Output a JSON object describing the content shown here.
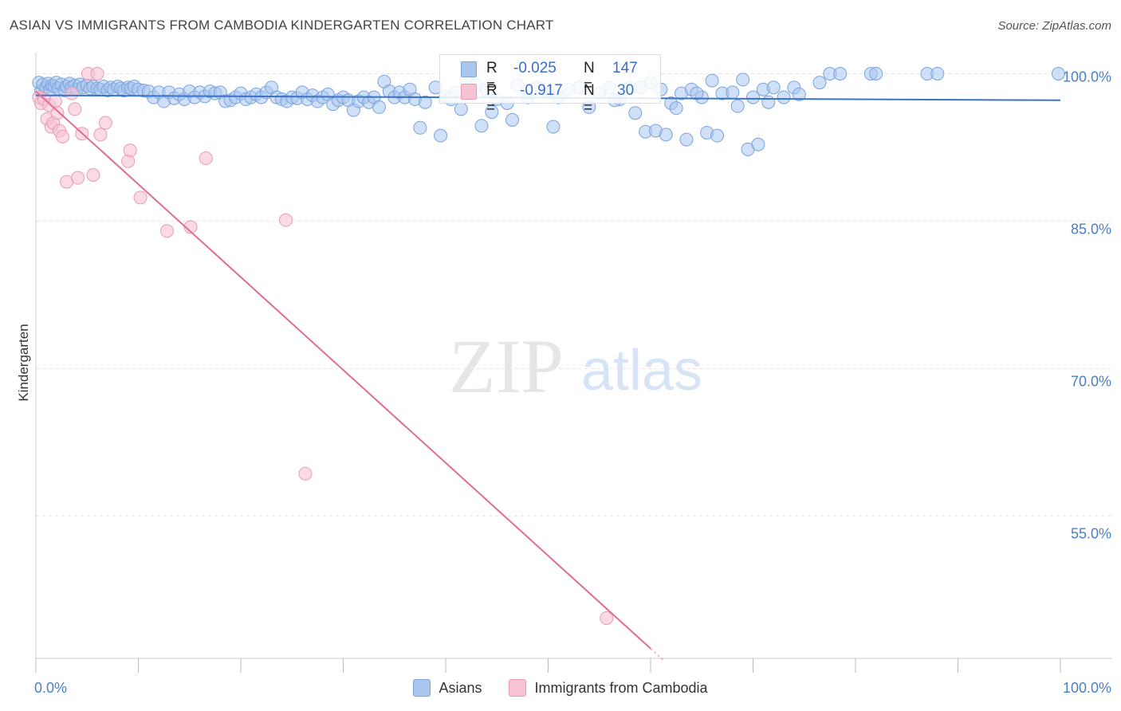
{
  "title": "ASIAN VS IMMIGRANTS FROM CAMBODIA KINDERGARTEN CORRELATION CHART",
  "source": "Source: ZipAtlas.com",
  "watermark": {
    "zip": "ZIP",
    "atlas": "atlas"
  },
  "colors": {
    "blue_fill": "#a9c6ee",
    "blue_stroke": "#7aa3dc",
    "blue_line": "#3a74c8",
    "pink_fill": "#f7c3d3",
    "pink_stroke": "#ea9ab4",
    "pink_line": "#e26a96",
    "tick_text": "#4a7ec7",
    "grid": "#e3e3e3"
  },
  "stats": {
    "series1": {
      "r_label": "R =",
      "r_value": "-0.025",
      "n_label": "N =",
      "n_value": "147"
    },
    "series2": {
      "r_label": "R =",
      "r_value": "-0.917",
      "n_label": "N =",
      "n_value": "30"
    }
  },
  "chart_data": {
    "type": "scatter",
    "title": "ASIAN VS IMMIGRANTS FROM CAMBODIA KINDERGARTEN CORRELATION CHART",
    "xlabel": "",
    "ylabel": "Kindergarten",
    "xlim": [
      0,
      100
    ],
    "ylim": [
      40.5,
      101.5
    ],
    "x_tick_labels": {
      "left": "0.0%",
      "right": "100.0%"
    },
    "y_ticks": [
      100,
      85,
      70,
      55
    ],
    "y_tick_labels": [
      "100.0%",
      "85.0%",
      "70.0%",
      "55.0%"
    ],
    "grid": true,
    "legend": [
      "Asians",
      "Immigrants from Cambodia"
    ],
    "series": [
      {
        "name": "Asians",
        "trendline": {
          "x": [
            0,
            100
          ],
          "y": [
            97.8,
            97.3
          ]
        },
        "points": [
          [
            0.3,
            99.1
          ],
          [
            0.5,
            98.2
          ],
          [
            0.7,
            98.9
          ],
          [
            1.0,
            98.6
          ],
          [
            1.2,
            99.0
          ],
          [
            1.4,
            98.4
          ],
          [
            1.6,
            98.8
          ],
          [
            1.8,
            98.7
          ],
          [
            2.0,
            99.1
          ],
          [
            2.2,
            98.5
          ],
          [
            2.5,
            98.9
          ],
          [
            2.8,
            98.3
          ],
          [
            3.0,
            98.7
          ],
          [
            3.3,
            99.0
          ],
          [
            3.5,
            98.6
          ],
          [
            3.8,
            98.8
          ],
          [
            4.0,
            98.4
          ],
          [
            4.3,
            98.9
          ],
          [
            4.6,
            98.6
          ],
          [
            5.0,
            98.8
          ],
          [
            5.3,
            98.5
          ],
          [
            5.6,
            98.7
          ],
          [
            6.0,
            98.5
          ],
          [
            6.3,
            98.4
          ],
          [
            6.6,
            98.7
          ],
          [
            7.0,
            98.3
          ],
          [
            7.3,
            98.6
          ],
          [
            7.6,
            98.4
          ],
          [
            8.0,
            98.7
          ],
          [
            8.3,
            98.5
          ],
          [
            8.6,
            98.3
          ],
          [
            9.0,
            98.6
          ],
          [
            9.3,
            98.5
          ],
          [
            9.6,
            98.7
          ],
          [
            10.0,
            98.4
          ],
          [
            10.5,
            98.3
          ],
          [
            11.0,
            98.2
          ],
          [
            11.5,
            97.6
          ],
          [
            12.0,
            98.1
          ],
          [
            12.5,
            97.2
          ],
          [
            13.0,
            98.1
          ],
          [
            13.5,
            97.5
          ],
          [
            14.0,
            97.9
          ],
          [
            14.5,
            97.4
          ],
          [
            15.0,
            98.2
          ],
          [
            15.5,
            97.6
          ],
          [
            16.0,
            98.1
          ],
          [
            16.5,
            97.7
          ],
          [
            17.0,
            98.2
          ],
          [
            17.5,
            98.0
          ],
          [
            18.0,
            98.1
          ],
          [
            18.5,
            97.2
          ],
          [
            19.0,
            97.3
          ],
          [
            19.5,
            97.6
          ],
          [
            20.0,
            98.0
          ],
          [
            20.5,
            97.4
          ],
          [
            21.0,
            97.6
          ],
          [
            21.5,
            97.9
          ],
          [
            22.0,
            97.6
          ],
          [
            22.5,
            98.1
          ],
          [
            23.0,
            98.6
          ],
          [
            23.5,
            97.6
          ],
          [
            24.0,
            97.4
          ],
          [
            24.5,
            97.2
          ],
          [
            25.0,
            97.6
          ],
          [
            25.5,
            97.5
          ],
          [
            26.0,
            98.1
          ],
          [
            26.5,
            97.4
          ],
          [
            27.0,
            97.8
          ],
          [
            27.5,
            97.2
          ],
          [
            28.0,
            97.6
          ],
          [
            28.5,
            97.9
          ],
          [
            29.0,
            96.9
          ],
          [
            29.5,
            97.3
          ],
          [
            30.0,
            97.6
          ],
          [
            30.5,
            97.3
          ],
          [
            31.0,
            96.3
          ],
          [
            31.5,
            97.2
          ],
          [
            32.0,
            97.6
          ],
          [
            32.5,
            97.1
          ],
          [
            33.0,
            97.6
          ],
          [
            33.5,
            96.6
          ],
          [
            34.0,
            99.2
          ],
          [
            34.5,
            98.2
          ],
          [
            35.0,
            97.6
          ],
          [
            35.5,
            98.1
          ],
          [
            36.0,
            97.6
          ],
          [
            36.5,
            98.4
          ],
          [
            37.0,
            97.4
          ],
          [
            38.0,
            97.1
          ],
          [
            39.0,
            98.6
          ],
          [
            40.0,
            97.7
          ],
          [
            41.0,
            98.1
          ],
          [
            42.0,
            99.4
          ],
          [
            43.0,
            98.8
          ],
          [
            44.0,
            98.3
          ],
          [
            45.0,
            97.4
          ],
          [
            46.0,
            97.0
          ],
          [
            47.0,
            98.9
          ],
          [
            48.0,
            97.6
          ],
          [
            49.0,
            98.6
          ],
          [
            50.0,
            98.1
          ],
          [
            51.0,
            97.6
          ],
          [
            52.0,
            98.4
          ],
          [
            53.0,
            98.6
          ],
          [
            54.0,
            96.6
          ],
          [
            55.0,
            98.0
          ],
          [
            56.0,
            98.6
          ],
          [
            57.0,
            97.4
          ],
          [
            58.0,
            98.6
          ],
          [
            59.0,
            98.6
          ],
          [
            60.0,
            99.1
          ],
          [
            61.0,
            98.4
          ],
          [
            62.0,
            97.0
          ],
          [
            63.0,
            98.0
          ],
          [
            64.0,
            98.4
          ],
          [
            65.0,
            97.6
          ],
          [
            66.0,
            99.3
          ],
          [
            67.0,
            98.0
          ],
          [
            68.0,
            98.1
          ],
          [
            69.0,
            99.4
          ],
          [
            70.0,
            97.6
          ],
          [
            71.0,
            98.4
          ],
          [
            72.0,
            98.6
          ],
          [
            73.0,
            97.6
          ],
          [
            74.0,
            98.6
          ],
          [
            37.5,
            94.5
          ],
          [
            39.5,
            93.7
          ],
          [
            40.5,
            97.4
          ],
          [
            41.5,
            96.4
          ],
          [
            43.5,
            94.7
          ],
          [
            44.5,
            96.1
          ],
          [
            46.5,
            95.3
          ],
          [
            50.5,
            94.6
          ],
          [
            59.5,
            94.1
          ],
          [
            60.5,
            94.2
          ],
          [
            61.5,
            93.8
          ],
          [
            63.5,
            93.3
          ],
          [
            65.5,
            94.0
          ],
          [
            66.5,
            93.7
          ],
          [
            69.5,
            92.3
          ],
          [
            70.5,
            92.8
          ],
          [
            74.5,
            97.9
          ],
          [
            76.5,
            99.1
          ],
          [
            77.5,
            100.0
          ],
          [
            78.5,
            100.0
          ],
          [
            81.5,
            100.0
          ],
          [
            82.0,
            100.0
          ],
          [
            87.0,
            100.0
          ],
          [
            88.0,
            100.0
          ],
          [
            99.8,
            100.0
          ],
          [
            56.5,
            97.3
          ],
          [
            58.5,
            96.0
          ],
          [
            62.5,
            96.5
          ],
          [
            64.5,
            98.0
          ],
          [
            68.5,
            96.7
          ],
          [
            71.5,
            97.1
          ]
        ]
      },
      {
        "name": "Immigrants from Cambodia",
        "trendline": {
          "x": [
            0,
            60
          ],
          "y": [
            98.2,
            41.5
          ]
        },
        "points": [
          [
            0.3,
            97.6
          ],
          [
            0.5,
            97.0
          ],
          [
            0.8,
            97.4
          ],
          [
            1.1,
            95.4
          ],
          [
            1.3,
            96.8
          ],
          [
            1.5,
            94.6
          ],
          [
            1.7,
            95.0
          ],
          [
            1.9,
            97.2
          ],
          [
            2.1,
            96.0
          ],
          [
            2.3,
            94.2
          ],
          [
            2.6,
            93.6
          ],
          [
            3.0,
            89.0
          ],
          [
            3.5,
            98.0
          ],
          [
            3.8,
            96.4
          ],
          [
            4.1,
            89.4
          ],
          [
            4.5,
            93.9
          ],
          [
            5.1,
            100.0
          ],
          [
            5.6,
            89.7
          ],
          [
            6.0,
            100.0
          ],
          [
            6.3,
            93.8
          ],
          [
            6.8,
            95.0
          ],
          [
            9.0,
            91.1
          ],
          [
            9.2,
            92.2
          ],
          [
            10.2,
            87.4
          ],
          [
            12.8,
            84.0
          ],
          [
            15.1,
            84.4
          ],
          [
            16.6,
            91.4
          ],
          [
            24.4,
            85.1
          ],
          [
            26.3,
            59.3
          ],
          [
            55.7,
            44.6
          ]
        ]
      }
    ]
  },
  "legend": {
    "asians": "Asians",
    "cambodia": "Immigrants from Cambodia"
  }
}
